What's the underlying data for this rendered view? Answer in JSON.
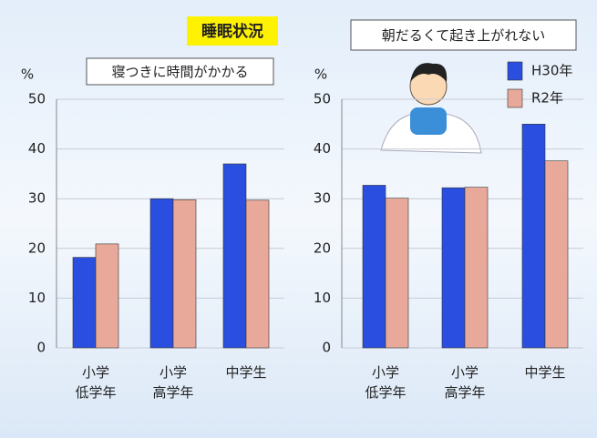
{
  "title": "睡眠状況",
  "chart_data": [
    {
      "type": "bar",
      "title": "寝つきに時間がかかる",
      "ylabel": "%",
      "categories": [
        "小学\n低学年",
        "小学\n高学年",
        "中学生"
      ],
      "series": [
        {
          "color": "#2a4fe0",
          "values": [
            18.2,
            30,
            37
          ]
        },
        {
          "color": "#e8a99a",
          "values": [
            20.9,
            29.8,
            29.7
          ]
        }
      ],
      "ylim": [
        0,
        50
      ],
      "yticks": [
        0,
        10,
        20,
        30,
        40,
        50
      ],
      "grid": true,
      "legend": false
    },
    {
      "type": "bar",
      "title": "朝だるくて起き上がれない",
      "ylabel": "%",
      "categories": [
        "小学\n低学年",
        "小学\n高学年",
        "中学生"
      ],
      "series": [
        {
          "name": "H30年",
          "color": "#2a4fe0",
          "values": [
            32.7,
            32.2,
            45
          ]
        },
        {
          "name": "R2年",
          "color": "#e8a99a",
          "values": [
            30.1,
            32.3,
            37.6
          ]
        }
      ],
      "ylim": [
        0,
        50
      ],
      "yticks": [
        0,
        10,
        20,
        30,
        40,
        50
      ],
      "grid": true,
      "legend": "upper right"
    }
  ]
}
